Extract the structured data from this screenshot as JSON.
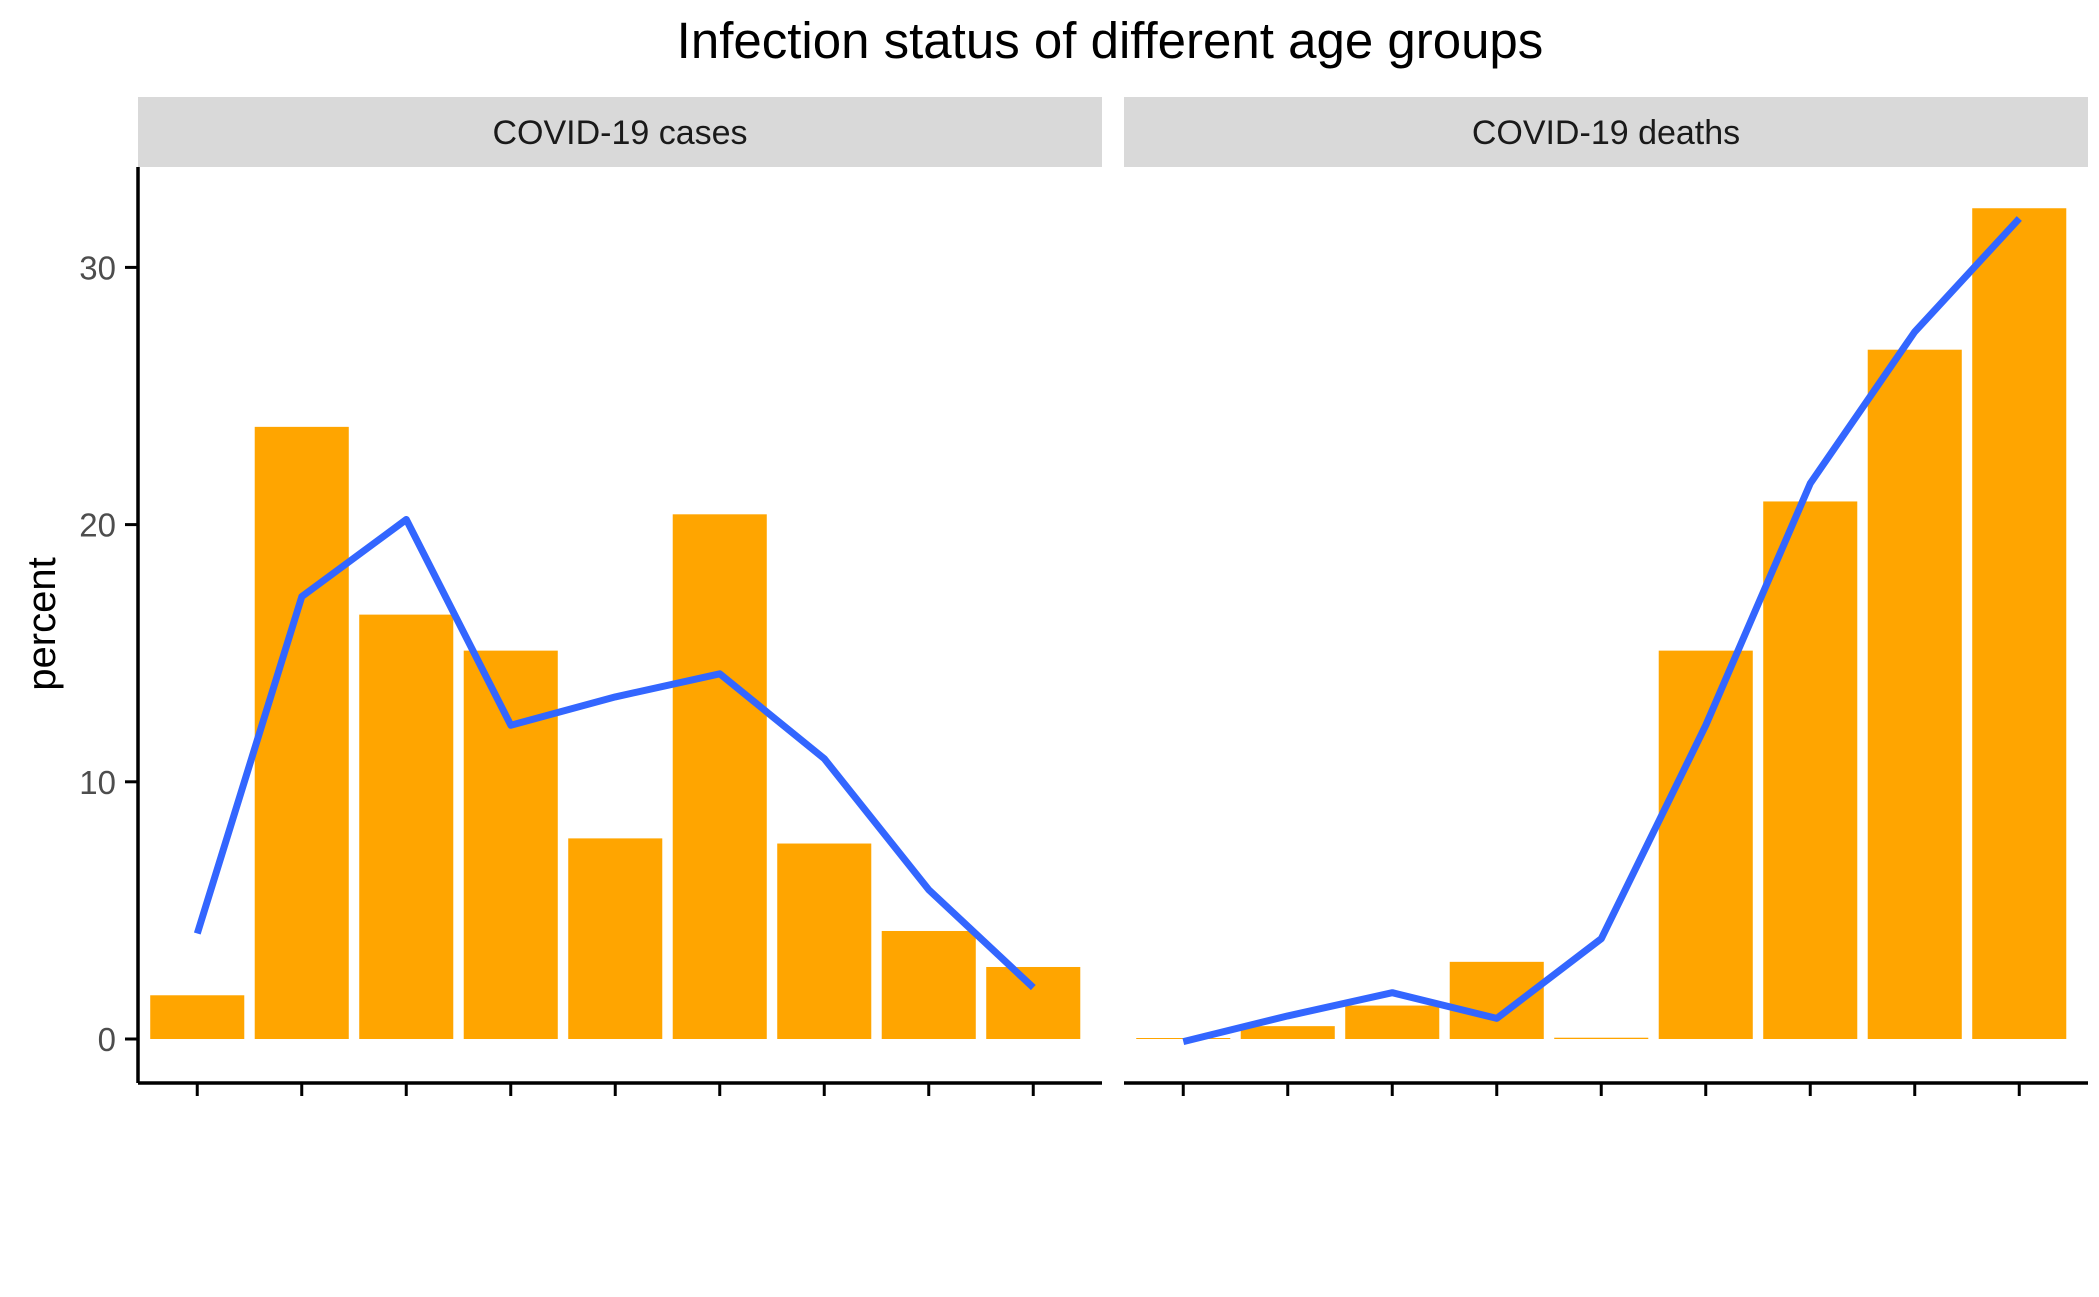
{
  "chart_data": {
    "type": "bar",
    "title": "Infection status of different age groups",
    "ylabel": "percent",
    "xlabel": "",
    "ylim": [
      0,
      34
    ],
    "yticks": [
      0,
      10,
      20,
      30
    ],
    "grid": false,
    "colors": {
      "bar": "#FFA500",
      "line": "#3366FF",
      "strip": "#D9D9D9",
      "axis": "#000000"
    },
    "panels": [
      {
        "name": "COVID-19 cases",
        "bar_values": [
          1.7,
          23.8,
          16.5,
          15.1,
          7.8,
          20.4,
          7.6,
          4.2,
          2.8
        ],
        "line_values": [
          4.1,
          17.2,
          20.2,
          12.2,
          13.3,
          14.2,
          10.9,
          5.8,
          2.0
        ]
      },
      {
        "name": "COVID-19 deaths",
        "bar_values": [
          0.0,
          0.5,
          1.3,
          3.0,
          0.05,
          15.1,
          20.9,
          26.8,
          32.3
        ],
        "line_values": [
          -0.1,
          0.9,
          1.8,
          0.8,
          3.9,
          12.2,
          21.6,
          27.5,
          31.9
        ]
      }
    ]
  }
}
